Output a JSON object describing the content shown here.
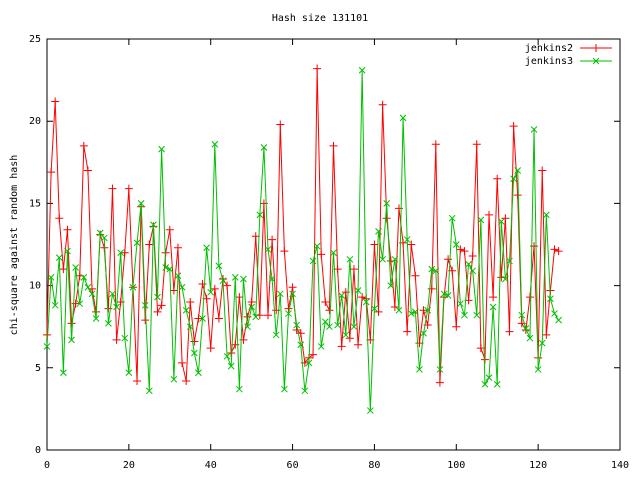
{
  "chart_data": {
    "type": "line",
    "title": "Hash size 131101",
    "ylabel": "chi-square against random hash",
    "x": [
      0,
      1,
      2,
      3,
      4,
      5,
      6,
      7,
      8,
      9,
      10,
      11,
      12,
      13,
      14,
      15,
      16,
      17,
      18,
      19,
      20,
      21,
      22,
      23,
      24,
      25,
      26,
      27,
      28,
      29,
      30,
      31,
      32,
      33,
      34,
      35,
      36,
      37,
      38,
      39,
      40,
      41,
      42,
      43,
      44,
      45,
      46,
      47,
      48,
      49,
      50,
      51,
      52,
      53,
      54,
      55,
      56,
      57,
      58,
      59,
      60,
      61,
      62,
      63,
      64,
      65,
      66,
      67,
      68,
      69,
      70,
      71,
      72,
      73,
      74,
      75,
      76,
      77,
      78,
      79,
      80,
      81,
      82,
      83,
      84,
      85,
      86,
      87,
      88,
      89,
      90,
      91,
      92,
      93,
      94,
      95,
      96,
      97,
      98,
      99,
      100,
      101,
      102,
      103,
      104,
      105,
      106,
      107,
      108,
      109,
      110,
      111,
      112,
      113,
      114,
      115,
      116,
      117,
      118,
      119,
      120,
      121,
      122,
      123,
      124,
      125
    ],
    "series": [
      {
        "name": "jenkins2",
        "color": "#ff0000",
        "marker": "+",
        "values": [
          7.0,
          16.9,
          21.2,
          14.1,
          11.0,
          13.4,
          7.7,
          8.9,
          10.6,
          18.5,
          17.0,
          9.8,
          8.4,
          13.1,
          12.3,
          8.6,
          15.9,
          6.7,
          9.0,
          12.0,
          15.9,
          9.9,
          4.2,
          14.8,
          7.9,
          12.5,
          13.6,
          8.4,
          8.8,
          12.0,
          13.4,
          9.7,
          12.3,
          5.3,
          4.2,
          9.0,
          6.6,
          8.0,
          10.1,
          9.2,
          6.2,
          9.8,
          8.0,
          10.4,
          10.0,
          5.9,
          6.4,
          9.3,
          6.7,
          8.1,
          9.0,
          13.0,
          8.2,
          15.0,
          8.2,
          12.8,
          8.5,
          19.8,
          12.1,
          8.6,
          9.9,
          7.3,
          7.1,
          5.3,
          5.6,
          5.8,
          23.2,
          11.9,
          9.0,
          8.5,
          18.5,
          11.0,
          6.3,
          9.6,
          6.8,
          11.0,
          6.4,
          9.3,
          9.2,
          6.7,
          12.5,
          8.4,
          21.0,
          14.1,
          11.5,
          8.7,
          14.7,
          12.6,
          7.2,
          12.5,
          10.6,
          6.5,
          8.5,
          7.6,
          9.8,
          18.6,
          4.1,
          9.3,
          11.6,
          10.9,
          7.5,
          12.2,
          12.1,
          9.1,
          11.8,
          18.6,
          6.2,
          5.5,
          14.3,
          9.3,
          16.5,
          10.5,
          14.1,
          7.2,
          19.7,
          15.5,
          7.7,
          7.3,
          9.3,
          12.4,
          5.6,
          17.0,
          7.0,
          9.7,
          12.2,
          12.1
        ]
      },
      {
        "name": "jenkins3",
        "color": "#00c000",
        "marker": "x",
        "values": [
          6.3,
          10.5,
          8.8,
          11.7,
          4.7,
          12.1,
          6.7,
          11.1,
          8.9,
          10.5,
          9.9,
          9.5,
          8.0,
          13.2,
          12.9,
          7.7,
          9.5,
          8.7,
          12.0,
          6.8,
          4.7,
          9.9,
          12.6,
          15.0,
          8.8,
          3.6,
          13.7,
          9.3,
          18.3,
          11.1,
          11.0,
          4.3,
          10.6,
          9.9,
          8.5,
          7.5,
          5.9,
          4.7,
          8.0,
          12.3,
          9.6,
          18.6,
          11.2,
          10.3,
          5.7,
          5.1,
          10.5,
          3.7,
          10.4,
          7.5,
          8.7,
          8.1,
          14.3,
          18.4,
          12.2,
          10.4,
          7.0,
          9.5,
          3.7,
          8.3,
          9.5,
          7.6,
          6.4,
          3.6,
          5.3,
          11.5,
          12.4,
          6.3,
          7.8,
          7.5,
          12.0,
          7.6,
          9.4,
          7.0,
          11.6,
          7.5,
          9.7,
          23.1,
          9.0,
          2.4,
          8.6,
          13.3,
          11.6,
          15.0,
          10.0,
          11.6,
          8.5,
          20.2,
          12.8,
          8.3,
          8.4,
          4.9,
          7.1,
          8.5,
          11.0,
          10.9,
          4.9,
          9.5,
          9.4,
          14.1,
          12.5,
          8.9,
          8.2,
          11.3,
          10.9,
          8.2,
          14.0,
          4.0,
          4.4,
          8.7,
          4.0,
          13.9,
          10.4,
          11.5,
          16.5,
          17.0,
          8.2,
          7.4,
          6.8,
          19.5,
          4.9,
          6.5,
          14.3,
          9.2,
          8.3,
          7.9
        ]
      }
    ],
    "xlim": [
      0,
      140
    ],
    "xticks": [
      0,
      20,
      40,
      60,
      80,
      100,
      120,
      140
    ],
    "ylim": [
      0,
      25
    ],
    "yticks": [
      0,
      5,
      10,
      15,
      20,
      25
    ],
    "legend": "top-right",
    "grid": false
  }
}
